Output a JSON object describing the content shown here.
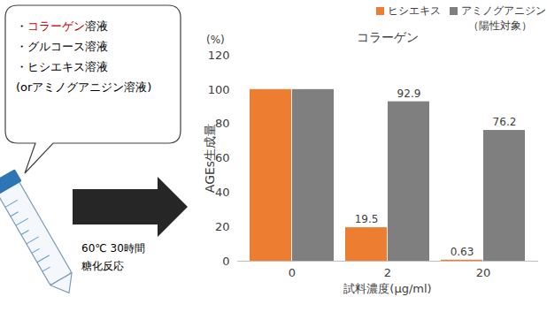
{
  "diagram": {
    "bubble": [
      [
        {
          "text": "・"
        },
        {
          "text": "コラーゲン",
          "color": "#c00000"
        },
        {
          "text": "溶液"
        }
      ],
      [
        {
          "text": "・グルコース溶液"
        }
      ],
      [
        {
          "text": "・ヒシエキス溶液"
        }
      ],
      [
        {
          "text": " (orアミノグアニジン溶液)"
        }
      ]
    ],
    "arrow_text": [
      "60℃ 30時間",
      "糖化反応"
    ]
  },
  "chart_data": {
    "type": "bar",
    "title": "コラーゲン",
    "x_label": "試料濃度(μg/ml)",
    "y_label": "AGEs生成量",
    "y_unit": "(%)",
    "categories": [
      "0",
      "2",
      "20"
    ],
    "series": [
      {
        "name": "ヒシエキス",
        "color": "#ed7d31",
        "values": [
          100,
          19.5,
          0.63
        ],
        "value_labels": [
          null,
          "19.5",
          "0.63"
        ]
      },
      {
        "name": "アミノグアニジン（陽性対象）",
        "color": "#7f7f7f",
        "values": [
          100,
          92.9,
          76.2
        ],
        "value_labels": [
          null,
          "92.9",
          "76.2"
        ]
      }
    ],
    "ylim": [
      0,
      120
    ],
    "yticks": [
      0,
      20,
      40,
      60,
      80,
      100,
      120
    ],
    "grid": false,
    "legend": "top-right",
    "data_labels": true
  }
}
